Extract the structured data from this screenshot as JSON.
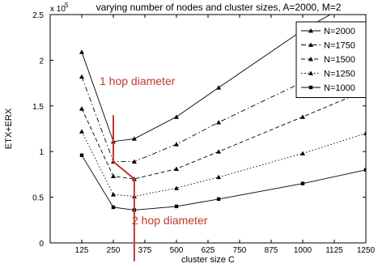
{
  "chart_data": {
    "type": "line",
    "title": "varying number of nodes and cluster sizes, A=2000, M=2",
    "xlabel": "cluster size C",
    "ylabel": "ETX+ERX",
    "y_scale_label": "x 10",
    "y_scale_exponent": "5",
    "xlim": [
      0,
      1250
    ],
    "ylim": [
      0,
      250000
    ],
    "x_ticks": [
      125,
      250,
      375,
      500,
      625,
      750,
      875,
      1000,
      1125,
      1250
    ],
    "x_tick_labels": [
      "125",
      "250",
      "375",
      "500",
      "625",
      "750",
      "875",
      "1000",
      "1125",
      "1250"
    ],
    "y_ticks": [
      0,
      50000,
      100000,
      150000,
      200000,
      250000
    ],
    "y_tick_labels": [
      "0",
      "0.5",
      "1",
      "1.5",
      "2",
      "2.5"
    ],
    "grid": false,
    "legend_position": "top-right",
    "series": [
      {
        "name": "N=2000",
        "style": "solid",
        "marker": "triangle",
        "points": [
          [
            125,
            209000
          ],
          [
            250,
            111000
          ],
          [
            333,
            114000
          ],
          [
            500,
            138000
          ],
          [
            667,
            170000
          ],
          [
            1000,
            233000
          ],
          [
            1250,
            272000
          ]
        ]
      },
      {
        "name": "N=1750",
        "style": "dashdot",
        "marker": "triangle",
        "points": [
          [
            125,
            182000
          ],
          [
            250,
            89000
          ],
          [
            333,
            89000
          ],
          [
            500,
            108000
          ],
          [
            667,
            132000
          ],
          [
            1000,
            176000
          ],
          [
            1250,
            210000
          ]
        ]
      },
      {
        "name": "N=1500",
        "style": "dashed",
        "marker": "triangle",
        "points": [
          [
            125,
            147000
          ],
          [
            250,
            73000
          ],
          [
            333,
            70000
          ],
          [
            500,
            81000
          ],
          [
            667,
            100000
          ],
          [
            1000,
            138000
          ],
          [
            1250,
            167000
          ]
        ]
      },
      {
        "name": "N=1250",
        "style": "dotted",
        "marker": "triangle",
        "points": [
          [
            125,
            122000
          ],
          [
            250,
            53000
          ],
          [
            333,
            51000
          ],
          [
            500,
            60000
          ],
          [
            667,
            72000
          ],
          [
            1000,
            98000
          ],
          [
            1250,
            120000
          ]
        ]
      },
      {
        "name": "N=1000",
        "style": "solid",
        "marker": "square",
        "points": [
          [
            125,
            96000
          ],
          [
            250,
            39000
          ],
          [
            333,
            36000
          ],
          [
            500,
            40000
          ],
          [
            667,
            48000
          ],
          [
            1000,
            65000
          ],
          [
            1250,
            80000
          ]
        ]
      }
    ],
    "annotations": [
      {
        "text": "1 hop diameter",
        "color": "#c0392b"
      },
      {
        "text": "2 hop diameter",
        "color": "#c0392b"
      }
    ],
    "annotation_path": [
      [
        250,
        140000
      ],
      [
        250,
        89000
      ],
      [
        333,
        70000
      ],
      [
        333,
        -20000
      ]
    ],
    "annotation_color": "#c0392b",
    "series_color": "#000000"
  }
}
